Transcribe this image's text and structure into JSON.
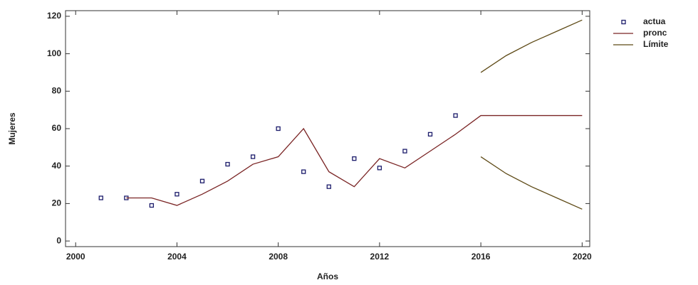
{
  "chart_data": {
    "type": "line",
    "x_label": "Años",
    "y_label": "Mujeres",
    "x": [
      2001,
      2002,
      2003,
      2004,
      2005,
      2006,
      2007,
      2008,
      2009,
      2010,
      2011,
      2012,
      2013,
      2014,
      2015,
      2016,
      2017,
      2018,
      2019,
      2020
    ],
    "series": [
      {
        "name": "actua",
        "style": "markers",
        "color": "#1c1c6b",
        "values": [
          23,
          23,
          19,
          25,
          32,
          41,
          45,
          60,
          37,
          29,
          44,
          39,
          48,
          57,
          67,
          null,
          null,
          null,
          null,
          null
        ]
      },
      {
        "name": "pronc",
        "style": "line",
        "color": "#7a2424",
        "values": [
          null,
          23,
          23,
          19,
          25,
          32,
          41,
          45,
          60,
          37,
          29,
          44,
          39,
          48,
          57,
          67,
          67,
          67,
          67,
          67
        ]
      },
      {
        "name": "Límite",
        "style": "line",
        "color": "#5e4a16",
        "values": [
          null,
          null,
          null,
          null,
          null,
          null,
          null,
          null,
          null,
          null,
          null,
          null,
          null,
          null,
          null,
          90,
          99,
          106,
          112,
          118
        ]
      },
      {
        "style": "line",
        "color": "#5e4a16",
        "values": [
          null,
          null,
          null,
          null,
          null,
          null,
          null,
          null,
          null,
          null,
          null,
          null,
          null,
          null,
          null,
          45,
          36,
          29,
          23,
          17
        ]
      }
    ],
    "xlim": [
      1999.6,
      2020.3
    ],
    "xticks": [
      2000,
      2004,
      2008,
      2012,
      2016,
      2020
    ],
    "ylim": [
      -3,
      123
    ],
    "yticks": [
      0,
      20,
      40,
      60,
      80,
      100,
      120
    ],
    "grid": false,
    "legend": "right"
  }
}
